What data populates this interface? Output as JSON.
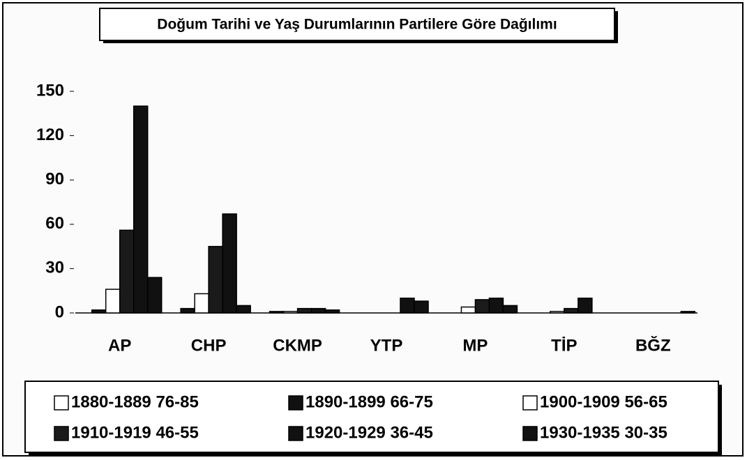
{
  "chart_data": {
    "type": "bar",
    "title": "Doğum Tarihi ve Yaş Durumlarının Partilere Göre Dağılımı",
    "categories": [
      "AP",
      "CHP",
      "CKMP",
      "YTP",
      "MP",
      "TİP",
      "BĞZ"
    ],
    "series": [
      {
        "name": "1880-1889 76-85",
        "color": "#ffffff",
        "values": [
          0,
          0,
          0,
          0,
          0,
          0,
          0
        ]
      },
      {
        "name": "1890-1899 66-75",
        "color": "#111111",
        "values": [
          2,
          3,
          1,
          0,
          0,
          0,
          0
        ]
      },
      {
        "name": "1900-1909 56-65",
        "color": "#ffffff",
        "values": [
          16,
          13,
          1,
          0,
          4,
          1,
          0
        ]
      },
      {
        "name": "1910-1919 46-55",
        "color": "#1a1a1a",
        "values": [
          56,
          45,
          3,
          0,
          9,
          3,
          0
        ]
      },
      {
        "name": "1920-1929 36-45",
        "color": "#111111",
        "values": [
          140,
          67,
          3,
          10,
          10,
          10,
          0
        ]
      },
      {
        "name": "1930-1935 30-35",
        "color": "#111111",
        "values": [
          24,
          5,
          2,
          8,
          5,
          0,
          1
        ]
      }
    ],
    "ylim": [
      0,
      150
    ],
    "yticks": [
      0,
      30,
      60,
      90,
      120,
      150
    ]
  }
}
